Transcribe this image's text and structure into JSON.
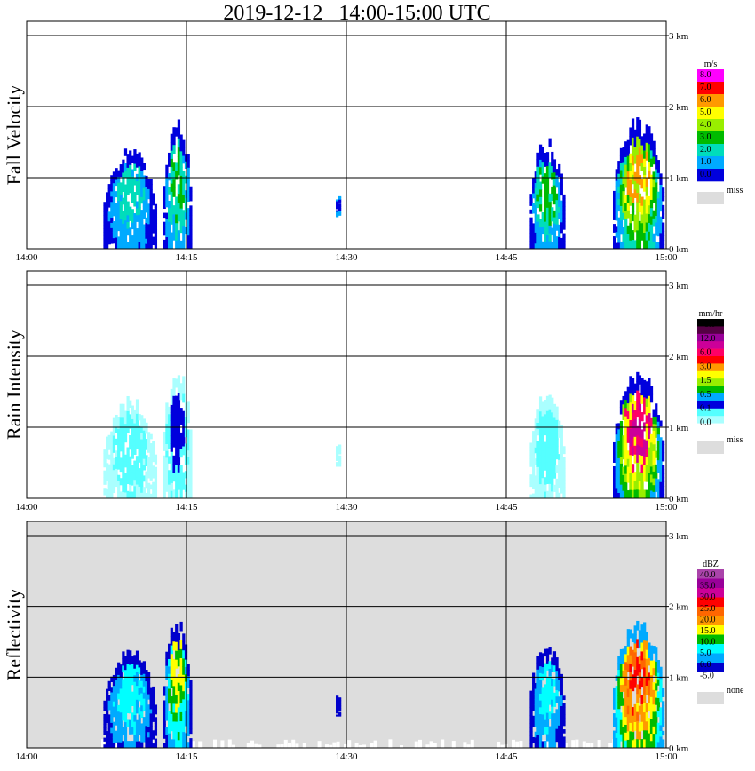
{
  "title": "2019-12-12   14:00-15:00 UTC",
  "x_tick_labels": [
    "14:00",
    "14:15",
    "14:30",
    "14:45",
    "15:00"
  ],
  "y_tick_labels": [
    "0 km",
    "1 km",
    "2 km",
    "3 km"
  ],
  "chart_data": [
    {
      "type": "heatmap",
      "ylabel": "Fall Velocity",
      "xlim": [
        "14:00",
        "15:00"
      ],
      "ylim_km": [
        0,
        3
      ],
      "grid": true,
      "background": "#ffffff",
      "colorbar": {
        "unit": "m/s",
        "labels": [
          "8.0",
          "7.0",
          "6.0",
          "5.0",
          "4.0",
          "3.0",
          "2.0",
          "1.0",
          "0.0",
          "miss"
        ],
        "colors": [
          "#ff00ff",
          "#ff0000",
          "#ff9900",
          "#ffff00",
          "#99ee00",
          "#00bb00",
          "#00ddbb",
          "#00aaff",
          "#0000dd",
          "#dddddd"
        ]
      },
      "echoes": [
        {
          "name": "cell-a",
          "t0_min": 7.2,
          "t1_min": 12.2,
          "z0_km": 0,
          "z1_km": 1.45,
          "colors": [
            "#0000dd",
            "#00aaff",
            "#00ddbb"
          ]
        },
        {
          "name": "cell-b",
          "t0_min": 12.8,
          "t1_min": 15.5,
          "z0_km": 0,
          "z1_km": 1.9,
          "colors": [
            "#0000dd",
            "#00aaff",
            "#00ddbb",
            "#00bb00"
          ]
        },
        {
          "name": "cell-c",
          "t0_min": 29.0,
          "t1_min": 29.5,
          "z0_km": 0.45,
          "z1_km": 0.8,
          "colors": [
            "#00aaff",
            "#0000dd"
          ]
        },
        {
          "name": "cell-d",
          "t0_min": 47.2,
          "t1_min": 50.5,
          "z0_km": 0,
          "z1_km": 1.6,
          "colors": [
            "#0000dd",
            "#00aaff",
            "#00ddbb",
            "#00bb00"
          ]
        },
        {
          "name": "cell-e",
          "t0_min": 55.0,
          "t1_min": 59.8,
          "z0_km": 0,
          "z1_km": 1.9,
          "colors": [
            "#0000dd",
            "#00aaff",
            "#00ddbb",
            "#00bb00",
            "#99ee00",
            "#ffff00",
            "#ff9900"
          ]
        }
      ]
    },
    {
      "type": "heatmap",
      "ylabel": "Rain Intensity",
      "xlim": [
        "14:00",
        "15:00"
      ],
      "ylim_km": [
        0,
        3
      ],
      "grid": true,
      "background": "#ffffff",
      "colorbar": {
        "unit": "mm/hr",
        "labels": [
          "48.0",
          "12.0",
          "6.0",
          "3.0",
          "1.5",
          "0.5",
          "0.1",
          "0.0",
          "miss"
        ],
        "colors": [
          "#000000",
          "#550044",
          "#990099",
          "#cc0099",
          "#ff0066",
          "#ff0000",
          "#ff9900",
          "#ffff00",
          "#99ee00",
          "#00bb00",
          "#00aaff",
          "#0000dd",
          "#55ffff",
          "#aaffff",
          "#ffffff",
          "#dddddd"
        ]
      },
      "echoes": [
        {
          "name": "cell-a",
          "t0_min": 7.2,
          "t1_min": 12.2,
          "z0_km": 0,
          "z1_km": 1.45,
          "colors": [
            "#aaffff",
            "#55ffff"
          ]
        },
        {
          "name": "cell-b",
          "t0_min": 12.8,
          "t1_min": 15.5,
          "z0_km": 0,
          "z1_km": 1.9,
          "colors": [
            "#aaffff",
            "#55ffff",
            "#0000dd"
          ]
        },
        {
          "name": "cell-c",
          "t0_min": 29.0,
          "t1_min": 29.5,
          "z0_km": 0.45,
          "z1_km": 0.8,
          "colors": [
            "#aaffff"
          ]
        },
        {
          "name": "cell-d",
          "t0_min": 47.2,
          "t1_min": 50.5,
          "z0_km": 0,
          "z1_km": 1.6,
          "colors": [
            "#aaffff",
            "#55ffff"
          ]
        },
        {
          "name": "cell-e",
          "t0_min": 55.0,
          "t1_min": 59.8,
          "z0_km": 0,
          "z1_km": 1.9,
          "colors": [
            "#0000dd",
            "#00aaff",
            "#00bb00",
            "#99ee00",
            "#ffff00",
            "#ff0066",
            "#cc0099"
          ]
        }
      ]
    },
    {
      "type": "heatmap",
      "ylabel": "Reflectivity",
      "xlim": [
        "14:00",
        "15:00"
      ],
      "ylim_km": [
        0,
        3
      ],
      "grid": true,
      "background": "#dddddd",
      "colorbar": {
        "unit": "dBZ",
        "labels": [
          "40.0",
          "35.0",
          "30.0",
          "25.0",
          "20.0",
          "15.0",
          "10.0",
          "5.0",
          "0.0",
          "-5.0",
          "none"
        ],
        "colors": [
          "#aa44aa",
          "#990099",
          "#cc0099",
          "#ff0000",
          "#ff6600",
          "#ff9900",
          "#ffff00",
          "#00bb00",
          "#00ffff",
          "#00aaff",
          "#0000cc",
          "#ffffff",
          "#dddddd"
        ]
      },
      "echoes": [
        {
          "name": "cell-a",
          "t0_min": 7.2,
          "t1_min": 12.2,
          "z0_km": 0,
          "z1_km": 1.45,
          "colors": [
            "#0000cc",
            "#00aaff",
            "#00ffff"
          ]
        },
        {
          "name": "cell-b",
          "t0_min": 12.8,
          "t1_min": 15.5,
          "z0_km": 0,
          "z1_km": 1.9,
          "colors": [
            "#0000cc",
            "#00aaff",
            "#00ffff",
            "#00bb00",
            "#ffff00"
          ]
        },
        {
          "name": "cell-c",
          "t0_min": 29.0,
          "t1_min": 29.5,
          "z0_km": 0.45,
          "z1_km": 0.8,
          "colors": [
            "#0000cc"
          ]
        },
        {
          "name": "cell-d",
          "t0_min": 47.2,
          "t1_min": 50.5,
          "z0_km": 0,
          "z1_km": 1.6,
          "colors": [
            "#0000cc",
            "#00aaff",
            "#00ffff"
          ]
        },
        {
          "name": "cell-e",
          "t0_min": 55.0,
          "t1_min": 59.8,
          "z0_km": 0,
          "z1_km": 1.9,
          "colors": [
            "#00aaff",
            "#00ffff",
            "#00bb00",
            "#ffff00",
            "#ff9900",
            "#ff6600",
            "#ff0000"
          ]
        }
      ],
      "surface_clutter": {
        "color": "#ffffff",
        "t0_min": 7.0,
        "t1_min": 57.5,
        "z1_km": 0.1
      }
    }
  ]
}
